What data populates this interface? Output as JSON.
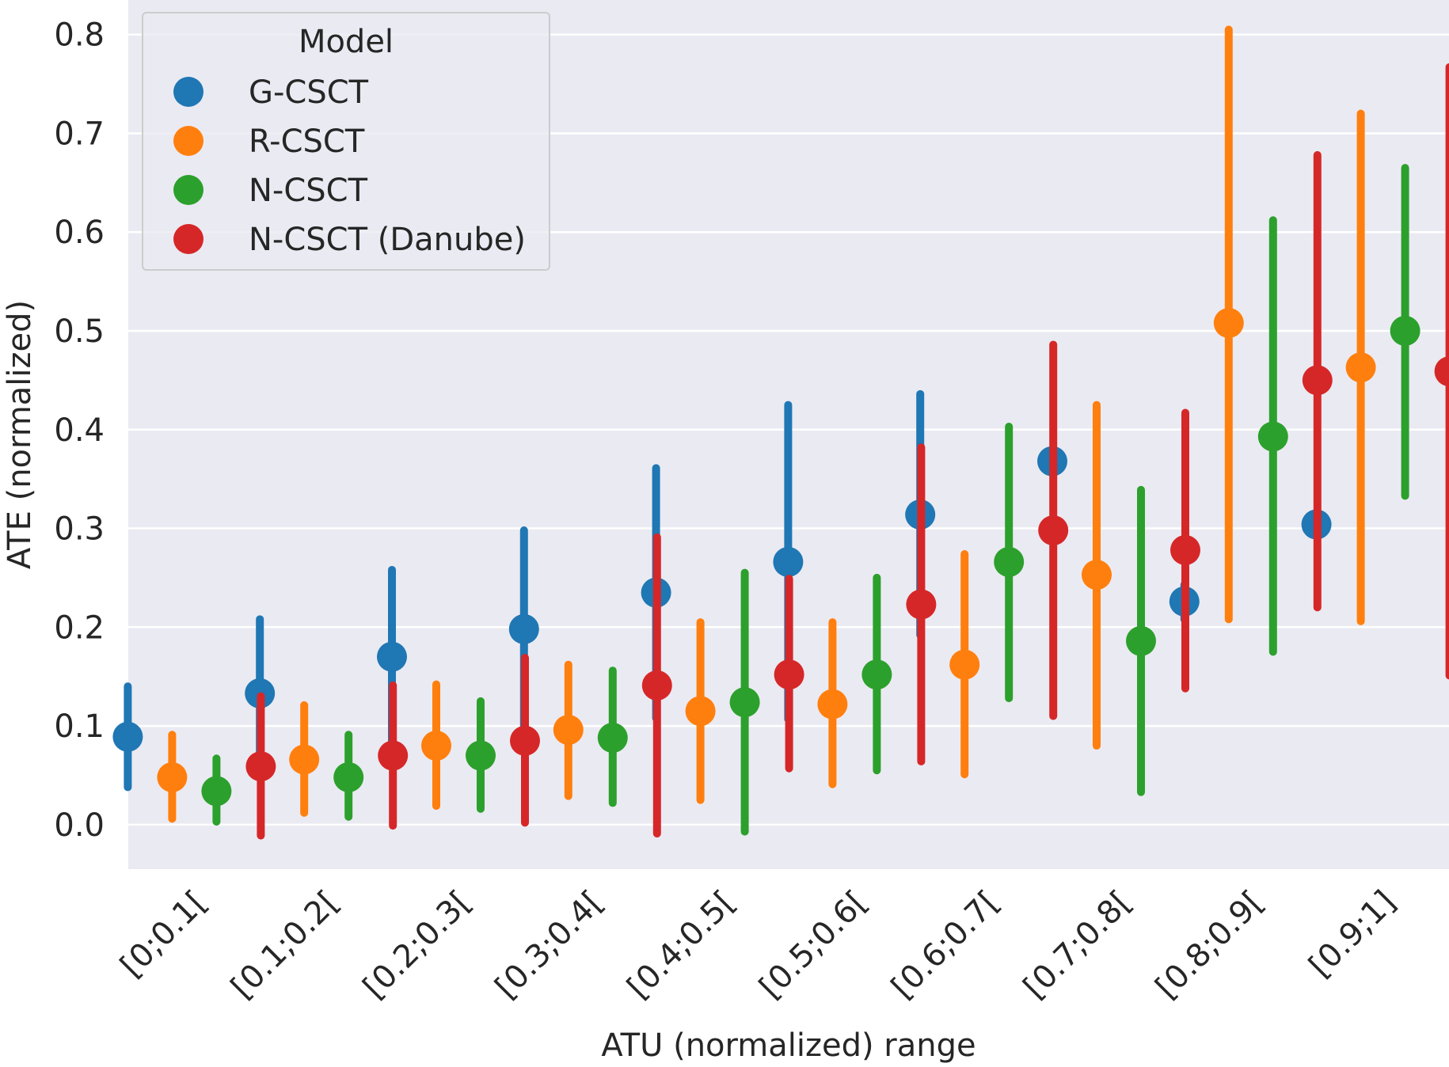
{
  "chart_data": {
    "type": "pointplot",
    "xlabel": "ATU (normalized) range",
    "ylabel": "ATE (normalized)",
    "ylim": [
      -0.045,
      0.835
    ],
    "yticks": [
      0.0,
      0.1,
      0.2,
      0.3,
      0.4,
      0.5,
      0.6,
      0.7,
      0.8
    ],
    "ytick_labels": [
      "0.0",
      "0.1",
      "0.2",
      "0.3",
      "0.4",
      "0.5",
      "0.6",
      "0.7",
      "0.8"
    ],
    "categories": [
      "[0;0.1[",
      "[0.1;0.2[",
      "[0.2;0.3[",
      "[0.3;0.4[",
      "[0.4;0.5[",
      "[0.5;0.6[",
      "[0.6;0.7[",
      "[0.7;0.8[",
      "[0.8;0.9[",
      "[0.9;1]"
    ],
    "legend": {
      "title": "Model",
      "placement": "top-left"
    },
    "series": [
      {
        "name": "G-CSCT",
        "color": "#1f77b4",
        "values": [
          0.089,
          0.133,
          0.17,
          0.198,
          0.235,
          0.266,
          0.314,
          0.368,
          0.226,
          0.304
        ],
        "ci_low": [
          0.038,
          0.058,
          0.082,
          0.098,
          0.108,
          0.107,
          0.192,
          0.368,
          0.208,
          0.304
        ],
        "ci_high": [
          0.14,
          0.208,
          0.258,
          0.298,
          0.361,
          0.425,
          0.436,
          0.368,
          0.243,
          0.304
        ]
      },
      {
        "name": "R-CSCT",
        "color": "#ff7f0e",
        "values": [
          0.048,
          0.066,
          0.08,
          0.096,
          0.115,
          0.122,
          0.162,
          0.253,
          0.508,
          0.463
        ],
        "ci_low": [
          0.006,
          0.012,
          0.019,
          0.029,
          0.025,
          0.041,
          0.051,
          0.08,
          0.208,
          0.206
        ],
        "ci_high": [
          0.091,
          0.121,
          0.142,
          0.162,
          0.205,
          0.205,
          0.274,
          0.425,
          0.805,
          0.72
        ]
      },
      {
        "name": "N-CSCT",
        "color": "#2ca02c",
        "values": [
          0.034,
          0.048,
          0.07,
          0.088,
          0.124,
          0.152,
          0.266,
          0.186,
          0.393,
          0.5
        ],
        "ci_low": [
          0.003,
          0.008,
          0.016,
          0.022,
          -0.007,
          0.055,
          0.128,
          0.033,
          0.175,
          0.333
        ],
        "ci_high": [
          0.067,
          0.091,
          0.125,
          0.156,
          0.255,
          0.25,
          0.403,
          0.339,
          0.612,
          0.665
        ]
      },
      {
        "name": "N-CSCT (Danube)",
        "color": "#d62728",
        "values": [
          0.059,
          0.07,
          0.085,
          0.141,
          0.152,
          0.223,
          0.298,
          0.278,
          0.45,
          0.459
        ],
        "ci_low": [
          -0.011,
          -0.001,
          0.002,
          -0.009,
          0.057,
          0.064,
          0.11,
          0.138,
          0.22,
          0.151
        ],
        "ci_high": [
          0.13,
          0.141,
          0.169,
          0.291,
          0.249,
          0.382,
          0.486,
          0.417,
          0.678,
          0.767
        ]
      }
    ]
  }
}
